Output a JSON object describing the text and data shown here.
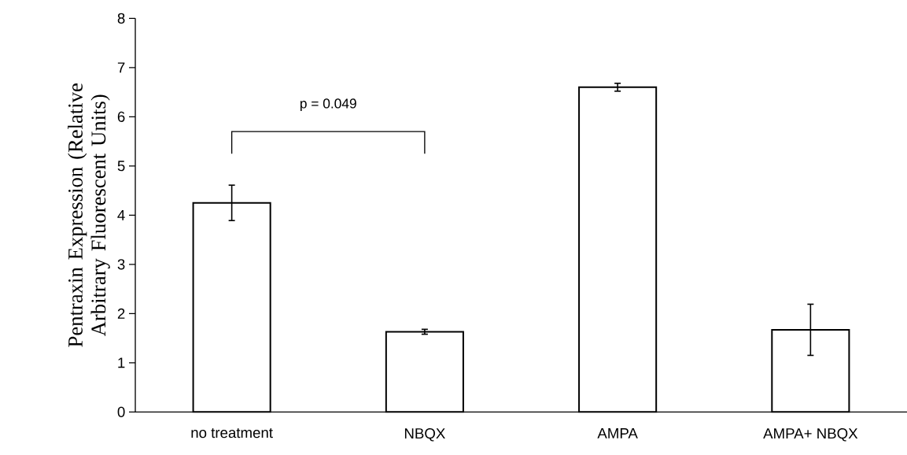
{
  "chart_data": {
    "type": "bar",
    "ylabel": "Pentraxin Expression (Relative Arbitrary Fluorescent Units)",
    "categories": [
      "no treatment",
      "NBQX",
      "AMPA",
      "AMPA+ NBQX"
    ],
    "values": [
      4.25,
      1.63,
      6.6,
      1.67
    ],
    "errors": [
      0.36,
      0.05,
      0.08,
      0.52
    ],
    "color": "#ffffff",
    "ylim": [
      0,
      8
    ],
    "yticks": [
      0,
      1,
      2,
      3,
      4,
      5,
      6,
      7,
      8
    ],
    "annotations": [
      "p = 0.049"
    ],
    "grid": false
  }
}
